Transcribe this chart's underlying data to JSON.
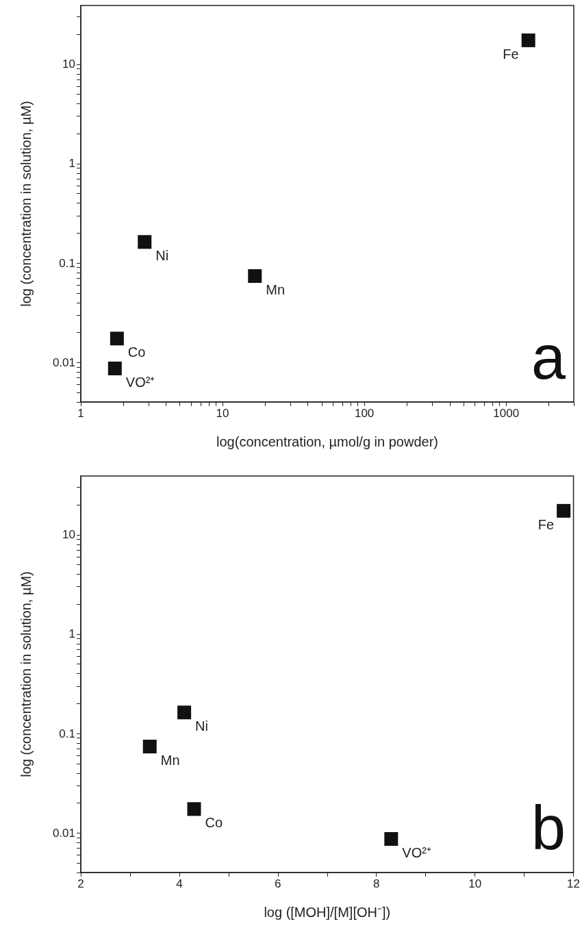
{
  "chart_data": [
    {
      "type": "scatter",
      "xlabel": "log(concentration, µmol/g in powder)",
      "ylabel": "log (concentration in solution, µM)",
      "log": "xy",
      "marker": "square",
      "x": [
        1435,
        2.82,
        16.9,
        1.8,
        1.74
      ],
      "series": [
        {
          "color": "#111111",
          "values": [
            17.4,
            0.163,
            0.074,
            0.0174,
            0.0087
          ]
        }
      ],
      "xlim": [
        1,
        3000
      ],
      "xticks": [
        1,
        {
          "value": 2,
          "label": null
        },
        {
          "value": 3,
          "label": null
        },
        {
          "value": 4,
          "label": null
        },
        {
          "value": 5,
          "label": null
        },
        {
          "value": 6,
          "label": null
        },
        {
          "value": 7,
          "label": null
        },
        {
          "value": 8,
          "label": null
        },
        {
          "value": 9,
          "label": null
        },
        10,
        {
          "value": 20,
          "label": null
        },
        {
          "value": 30,
          "label": null
        },
        {
          "value": 40,
          "label": null
        },
        {
          "value": 50,
          "label": null
        },
        {
          "value": 60,
          "label": null
        },
        {
          "value": 70,
          "label": null
        },
        {
          "value": 80,
          "label": null
        },
        {
          "value": 90,
          "label": null
        },
        100,
        {
          "value": 200,
          "label": null
        },
        {
          "value": 300,
          "label": null
        },
        {
          "value": 400,
          "label": null
        },
        {
          "value": 500,
          "label": null
        },
        {
          "value": 600,
          "label": null
        },
        {
          "value": 700,
          "label": null
        },
        {
          "value": 800,
          "label": null
        },
        {
          "value": 900,
          "label": null
        },
        1000,
        {
          "value": 2000,
          "label": null
        },
        {
          "value": 3000,
          "label": null
        }
      ],
      "ylim": [
        0.004,
        39
      ],
      "yticks": [
        {
          "value": 0.004,
          "label": null
        },
        {
          "value": 0.005,
          "label": null
        },
        {
          "value": 0.006,
          "label": null
        },
        {
          "value": 0.007,
          "label": null
        },
        {
          "value": 0.008,
          "label": null
        },
        {
          "value": 0.009,
          "label": null
        },
        0.01,
        {
          "value": 0.02,
          "label": null
        },
        {
          "value": 0.03,
          "label": null
        },
        {
          "value": 0.04,
          "label": null
        },
        {
          "value": 0.05,
          "label": null
        },
        {
          "value": 0.06,
          "label": null
        },
        {
          "value": 0.07,
          "label": null
        },
        {
          "value": 0.08,
          "label": null
        },
        {
          "value": 0.09,
          "label": null
        },
        0.1,
        {
          "value": 0.2,
          "label": null
        },
        {
          "value": 0.3,
          "label": null
        },
        {
          "value": 0.4,
          "label": null
        },
        {
          "value": 0.5,
          "label": null
        },
        {
          "value": 0.6,
          "label": null
        },
        {
          "value": 0.7,
          "label": null
        },
        {
          "value": 0.8,
          "label": null
        },
        {
          "value": 0.9,
          "label": null
        },
        1,
        {
          "value": 2,
          "label": null
        },
        {
          "value": 3,
          "label": null
        },
        {
          "value": 4,
          "label": null
        },
        {
          "value": 5,
          "label": null
        },
        {
          "value": 6,
          "label": null
        },
        {
          "value": 7,
          "label": null
        },
        {
          "value": 8,
          "label": null
        },
        {
          "value": 9,
          "label": null
        },
        10,
        {
          "value": 20,
          "label": null
        },
        {
          "value": 30,
          "label": null
        }
      ],
      "annotations": [
        {
          "text": "Fe",
          "x": 1435,
          "y": 17.4
        },
        {
          "text": "Ni",
          "x": 2.82,
          "y": 0.163
        },
        {
          "text": "Mn",
          "x": 16.9,
          "y": 0.074
        },
        {
          "text": "Co",
          "x": 1.8,
          "y": 0.0174
        },
        {
          "text": "VO²⁺",
          "x": 1.74,
          "y": 0.0087
        },
        "a"
      ]
    },
    {
      "type": "scatter",
      "xlabel": "log ([MOH]/[M][OH⁻])",
      "ylabel": "log (concentration in solution, µM)",
      "log": "y",
      "marker": "square",
      "x": [
        11.8,
        4.1,
        3.4,
        4.3,
        8.3
      ],
      "series": [
        {
          "color": "#111111",
          "values": [
            17.4,
            0.163,
            0.074,
            0.0174,
            0.0087
          ]
        }
      ],
      "xlim": [
        2,
        12
      ],
      "xticks": [
        2,
        {
          "value": 3,
          "label": null
        },
        4,
        {
          "value": 5,
          "label": null
        },
        6,
        {
          "value": 7,
          "label": null
        },
        8,
        {
          "value": 9,
          "label": null
        },
        10,
        {
          "value": 11,
          "label": null
        },
        12
      ],
      "ylim": [
        0.004,
        39
      ],
      "yticks": [
        {
          "value": 0.004,
          "label": null
        },
        {
          "value": 0.005,
          "label": null
        },
        {
          "value": 0.006,
          "label": null
        },
        {
          "value": 0.007,
          "label": null
        },
        {
          "value": 0.008,
          "label": null
        },
        {
          "value": 0.009,
          "label": null
        },
        0.01,
        {
          "value": 0.02,
          "label": null
        },
        {
          "value": 0.03,
          "label": null
        },
        {
          "value": 0.04,
          "label": null
        },
        {
          "value": 0.05,
          "label": null
        },
        {
          "value": 0.06,
          "label": null
        },
        {
          "value": 0.07,
          "label": null
        },
        {
          "value": 0.08,
          "label": null
        },
        {
          "value": 0.09,
          "label": null
        },
        0.1,
        {
          "value": 0.2,
          "label": null
        },
        {
          "value": 0.3,
          "label": null
        },
        {
          "value": 0.4,
          "label": null
        },
        {
          "value": 0.5,
          "label": null
        },
        {
          "value": 0.6,
          "label": null
        },
        {
          "value": 0.7,
          "label": null
        },
        {
          "value": 0.8,
          "label": null
        },
        {
          "value": 0.9,
          "label": null
        },
        1,
        {
          "value": 2,
          "label": null
        },
        {
          "value": 3,
          "label": null
        },
        {
          "value": 4,
          "label": null
        },
        {
          "value": 5,
          "label": null
        },
        {
          "value": 6,
          "label": null
        },
        {
          "value": 7,
          "label": null
        },
        {
          "value": 8,
          "label": null
        },
        {
          "value": 9,
          "label": null
        },
        10,
        {
          "value": 20,
          "label": null
        },
        {
          "value": 30,
          "label": null
        }
      ],
      "annotations": [
        {
          "text": "Fe",
          "x": 11.8,
          "y": 17.4
        },
        {
          "text": "Ni",
          "x": 4.1,
          "y": 0.163
        },
        {
          "text": "Mn",
          "x": 3.4,
          "y": 0.074
        },
        {
          "text": "Co",
          "x": 4.3,
          "y": 0.0174
        },
        {
          "text": "VO²⁺",
          "x": 8.3,
          "y": 0.0087
        },
        "b"
      ]
    }
  ]
}
